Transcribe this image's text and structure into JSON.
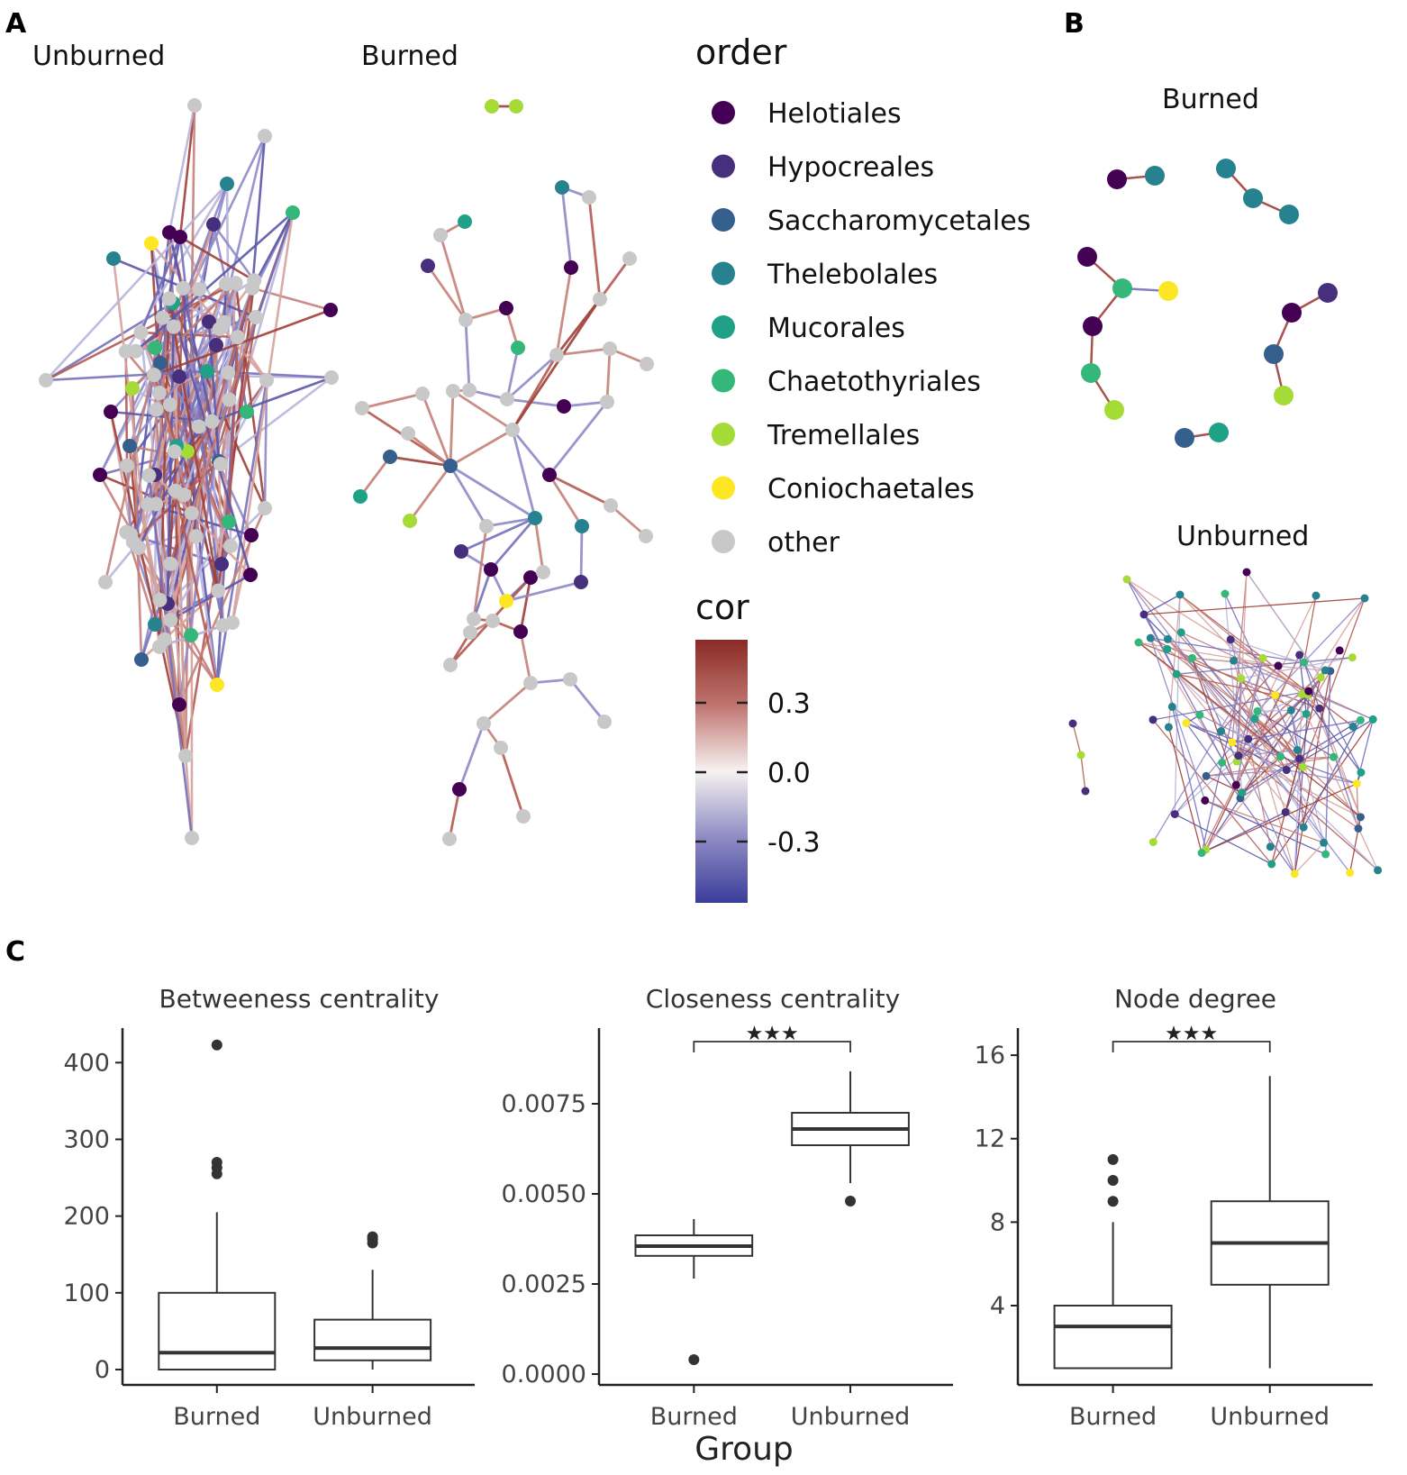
{
  "panels": {
    "a_label": "A",
    "b_label": "B",
    "c_label": "C",
    "unburned_title": "Unburned",
    "burned_title": "Burned",
    "b_burned_title": "Burned",
    "b_unburned_title": "Unburned"
  },
  "legend": {
    "order_title": "order",
    "items": [
      {
        "label": "Helotiales",
        "color": "#440154"
      },
      {
        "label": "Hypocreales",
        "color": "#472f7d"
      },
      {
        "label": "Saccharomycetales",
        "color": "#355f8d"
      },
      {
        "label": "Thelebolales",
        "color": "#26828e"
      },
      {
        "label": "Mucorales",
        "color": "#1fa188"
      },
      {
        "label": "Chaetothyriales",
        "color": "#35b779"
      },
      {
        "label": "Tremellales",
        "color": "#a5db36"
      },
      {
        "label": "Coniochaetales",
        "color": "#fde725"
      },
      {
        "label": "other",
        "color": "#c8c8c8"
      }
    ],
    "cor_title": "cor",
    "cor_ticks": [
      "0.3",
      "0.0",
      "-0.3"
    ],
    "cor_colors": {
      "high": "#8b2a25",
      "mid": "#f6f2f1",
      "low": "#3a3d9a"
    }
  },
  "chart_data": [
    {
      "type": "box",
      "title": "Betweeness centrality",
      "categories": [
        "Burned",
        "Unburned"
      ],
      "yticks": [
        "0",
        "100",
        "200",
        "300",
        "400"
      ],
      "ylim": [
        -20,
        445
      ],
      "boxes": [
        {
          "q1": 0,
          "median": 22,
          "q3": 100,
          "whisker_low": 0,
          "whisker_high": 205,
          "outliers": [
            255,
            263,
            270,
            423
          ]
        },
        {
          "q1": 12,
          "median": 28,
          "q3": 65,
          "whisker_low": 0,
          "whisker_high": 130,
          "outliers": [
            165,
            170,
            173
          ]
        }
      ],
      "significance": ""
    },
    {
      "type": "box",
      "title": "Closeness centrality",
      "categories": [
        "Burned",
        "Unburned"
      ],
      "yticks": [
        "0.0000",
        "0.0025",
        "0.0050",
        "0.0075"
      ],
      "ylim": [
        -0.0003,
        0.0096
      ],
      "boxes": [
        {
          "q1": 0.00328,
          "median": 0.00355,
          "q3": 0.00385,
          "whisker_low": 0.00265,
          "whisker_high": 0.0043,
          "outliers": [
            0.0004
          ]
        },
        {
          "q1": 0.00635,
          "median": 0.0068,
          "q3": 0.00725,
          "whisker_low": 0.0053,
          "whisker_high": 0.0084,
          "outliers": [
            0.0048
          ]
        }
      ],
      "significance": "★★★"
    },
    {
      "type": "box",
      "title": "Node degree",
      "categories": [
        "Burned",
        "Unburned"
      ],
      "yticks": [
        "4",
        "8",
        "12",
        "16"
      ],
      "ylim": [
        0.2,
        17.3
      ],
      "boxes": [
        {
          "q1": 1,
          "median": 3,
          "q3": 4,
          "whisker_low": 1,
          "whisker_high": 8,
          "outliers": [
            9,
            10,
            11
          ]
        },
        {
          "q1": 5,
          "median": 7,
          "q3": 9,
          "whisker_low": 1,
          "whisker_high": 15,
          "outliers": []
        }
      ],
      "significance": "★★★"
    }
  ],
  "x_axis_title": "Group"
}
